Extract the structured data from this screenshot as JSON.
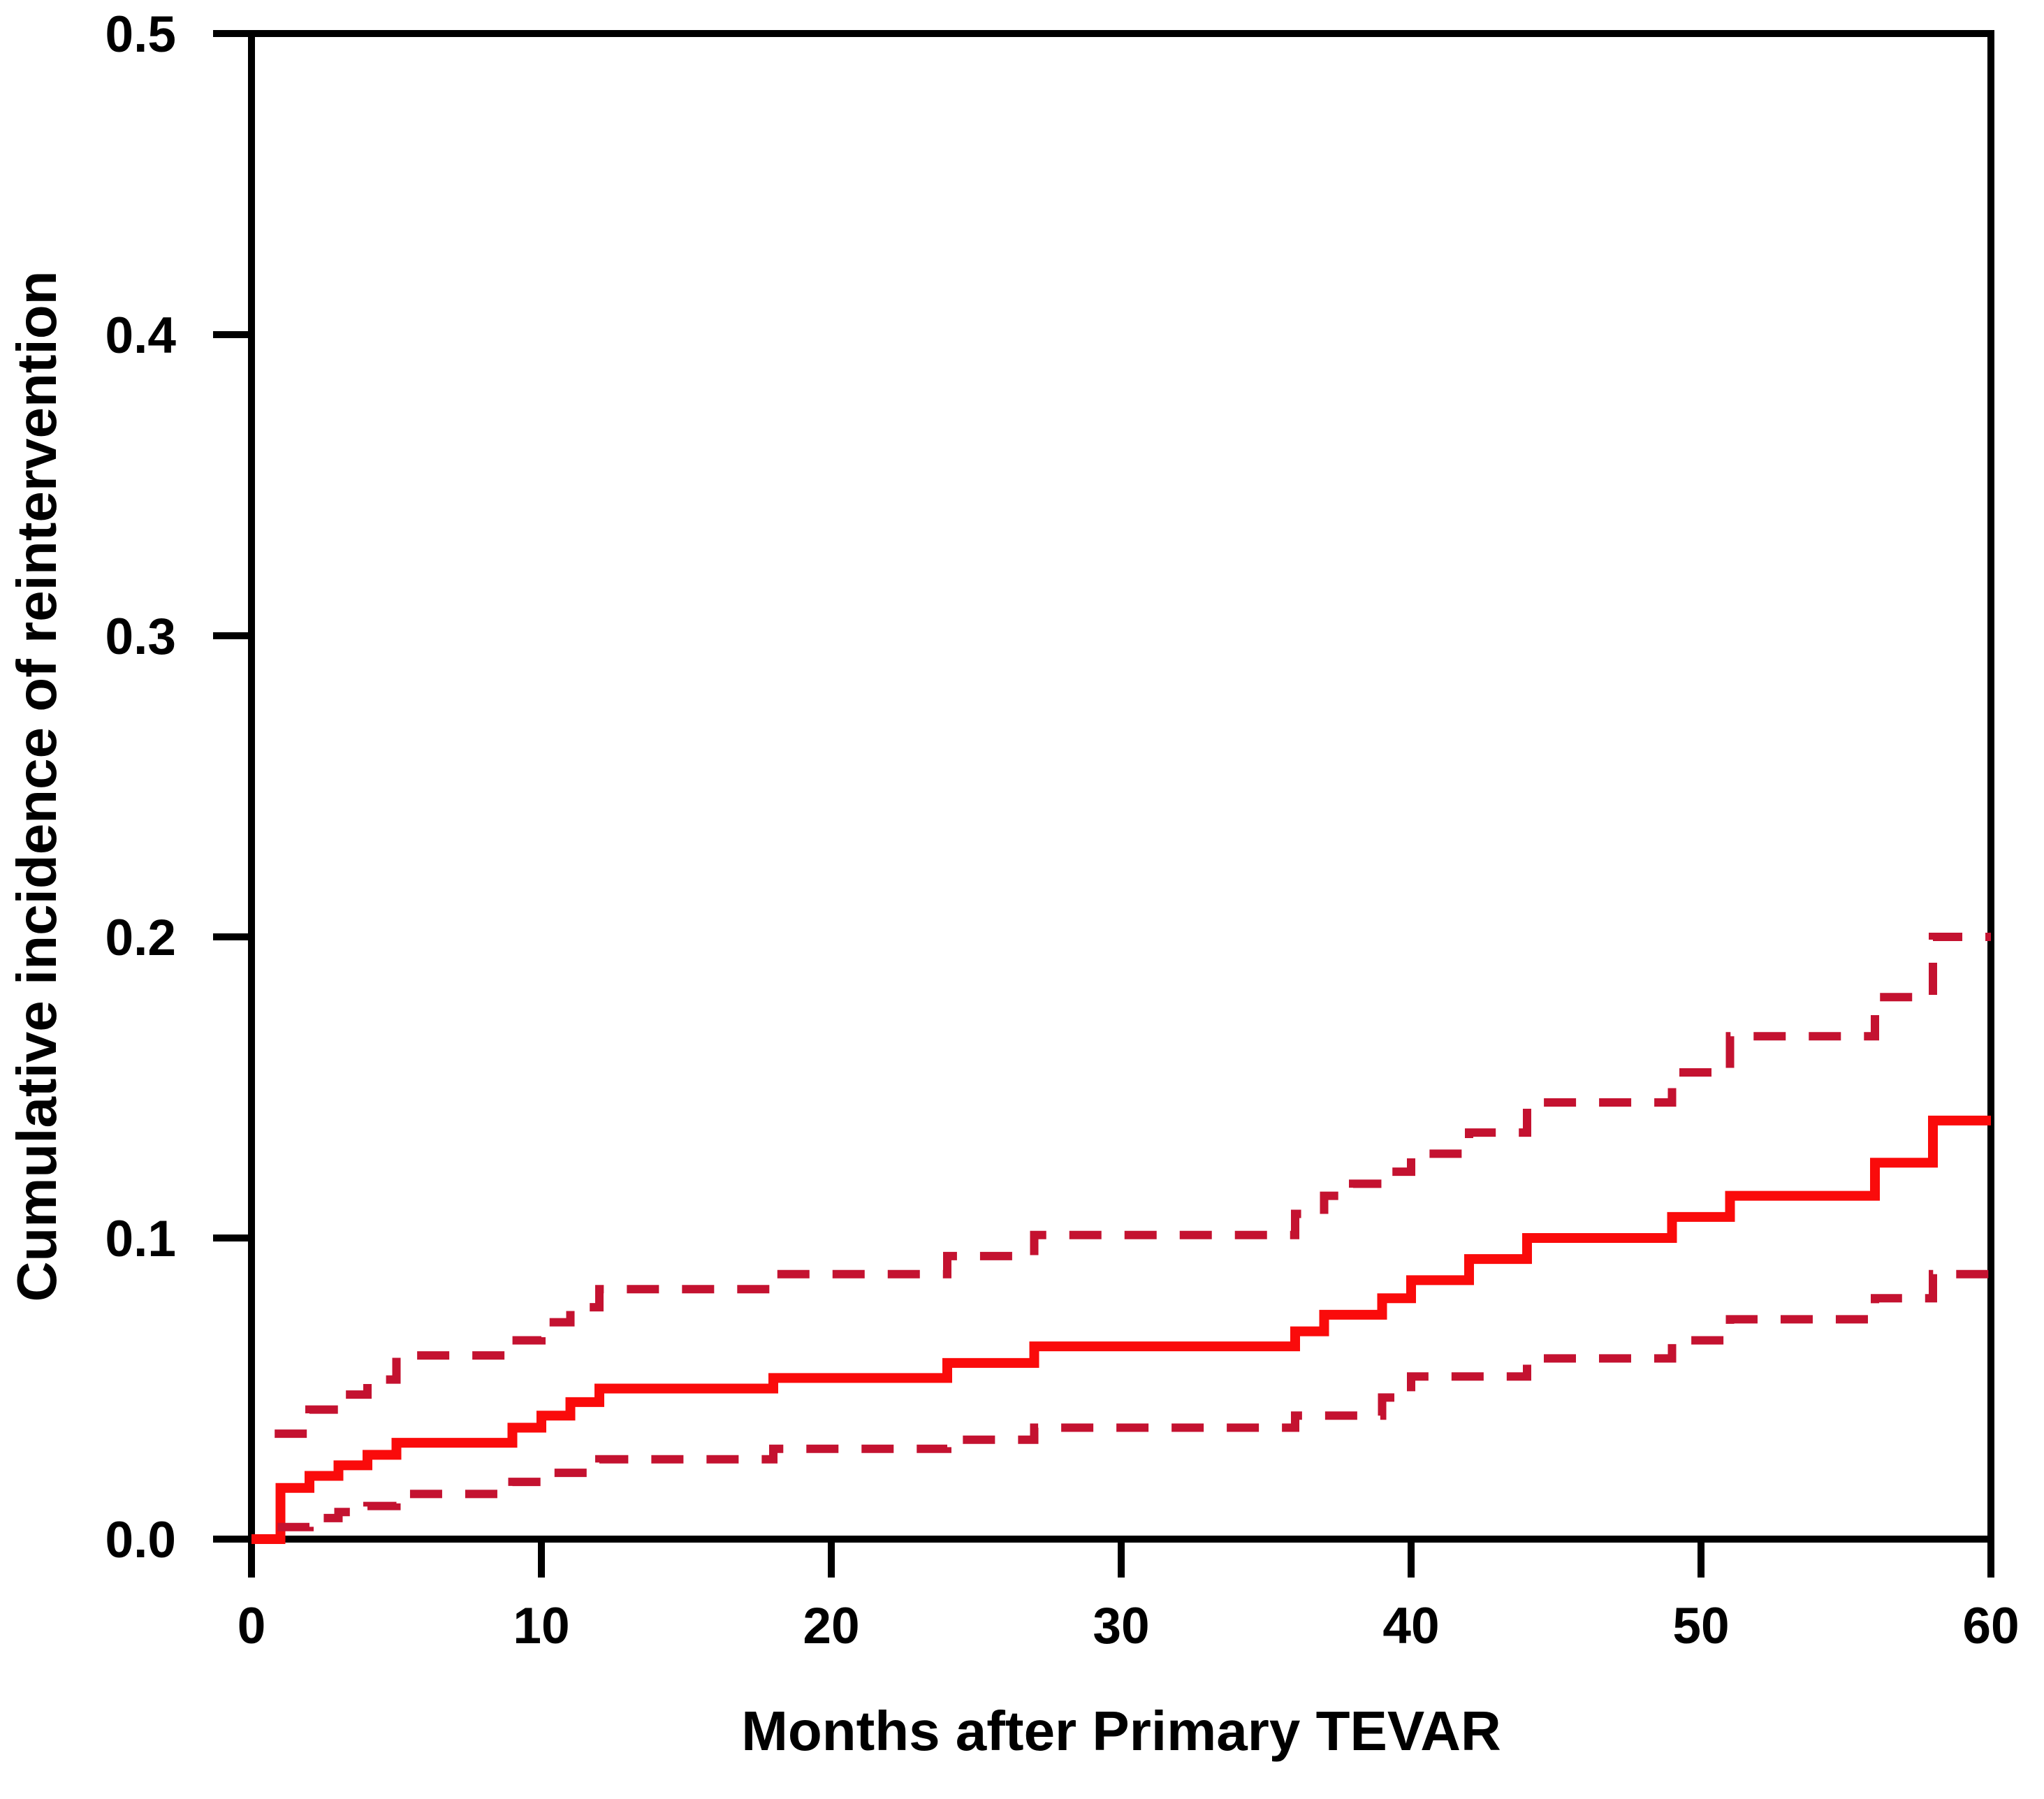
{
  "figure": {
    "background_color": "#ffffff",
    "frame_color": "#000000"
  },
  "chart_data": {
    "type": "line",
    "subtype": "step-function-cumulative-incidence-with-confidence-bands",
    "title": "",
    "xlabel": "Months after Primary TEVAR",
    "ylabel": "Cumulative incidence of reintervention",
    "xlim": [
      0,
      60
    ],
    "ylim": [
      0,
      0.5
    ],
    "x_ticks": [
      0,
      10,
      20,
      30,
      40,
      50,
      60
    ],
    "y_ticks": [
      "0.0",
      "0.1",
      "0.2",
      "0.3",
      "0.4",
      "0.5"
    ],
    "grid": false,
    "legend_position": "none",
    "frame": "full-box",
    "series": [
      {
        "name": "cumulative-incidence-estimate",
        "label": "Cumulative incidence of reintervention (estimate)",
        "style": "solid",
        "color": "#fa0b0b",
        "stroke_width": 14,
        "end_x": 60,
        "steps": [
          [
            0,
            0
          ],
          [
            1,
            0.017
          ],
          [
            2,
            0.021
          ],
          [
            3,
            0.0245
          ],
          [
            4,
            0.028
          ],
          [
            5,
            0.032
          ],
          [
            9,
            0.037
          ],
          [
            10,
            0.041
          ],
          [
            11,
            0.0455
          ],
          [
            12,
            0.05
          ],
          [
            18,
            0.0535
          ],
          [
            24,
            0.0585
          ],
          [
            27,
            0.064
          ],
          [
            36,
            0.069
          ],
          [
            37,
            0.0745
          ],
          [
            39,
            0.08
          ],
          [
            40,
            0.086
          ],
          [
            42,
            0.093
          ],
          [
            44,
            0.1
          ],
          [
            49,
            0.107
          ],
          [
            51,
            0.114
          ],
          [
            56,
            0.125
          ],
          [
            58,
            0.139
          ]
        ]
      },
      {
        "name": "upper-95-ci",
        "label": "Upper 95% confidence limit",
        "style": "dashed",
        "color": "#c41230",
        "stroke_width": 12,
        "end_x": 60,
        "steps": [
          [
            0.8,
            0.035
          ],
          [
            2,
            0.043
          ],
          [
            3,
            0.048
          ],
          [
            4,
            0.053
          ],
          [
            5,
            0.061
          ],
          [
            9,
            0.066
          ],
          [
            10,
            0.072
          ],
          [
            11,
            0.077
          ],
          [
            12,
            0.083
          ],
          [
            18,
            0.088
          ],
          [
            24,
            0.094
          ],
          [
            27,
            0.101
          ],
          [
            36,
            0.108
          ],
          [
            37,
            0.114
          ],
          [
            38,
            0.118
          ],
          [
            39,
            0.122
          ],
          [
            40,
            0.128
          ],
          [
            42,
            0.135
          ],
          [
            44,
            0.145
          ],
          [
            49,
            0.155
          ],
          [
            51,
            0.167
          ],
          [
            56,
            0.18
          ],
          [
            58,
            0.2
          ]
        ]
      },
      {
        "name": "lower-95-ci",
        "label": "Lower 95% confidence limit",
        "style": "dashed",
        "color": "#c41230",
        "stroke_width": 12,
        "end_x": 60,
        "steps": [
          [
            0.9,
            0.004
          ],
          [
            2,
            0.007
          ],
          [
            3,
            0.009
          ],
          [
            4,
            0.011
          ],
          [
            5,
            0.015
          ],
          [
            9,
            0.019
          ],
          [
            10,
            0.022
          ],
          [
            12,
            0.0265
          ],
          [
            18,
            0.03
          ],
          [
            24,
            0.033
          ],
          [
            27,
            0.037
          ],
          [
            36,
            0.041
          ],
          [
            39,
            0.047
          ],
          [
            40,
            0.054
          ],
          [
            44,
            0.06
          ],
          [
            49,
            0.066
          ],
          [
            51,
            0.073
          ],
          [
            56,
            0.08
          ],
          [
            58,
            0.088
          ]
        ]
      }
    ]
  }
}
